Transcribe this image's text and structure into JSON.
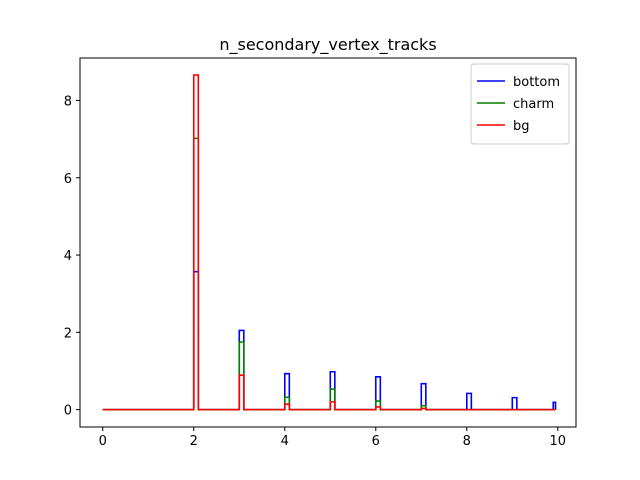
{
  "chart_data": {
    "type": "line",
    "subtype": "step-histogram",
    "title": "n_secondary_vertex_tracks",
    "xlabel": "",
    "ylabel": "",
    "xlim": [
      -0.5,
      10.4
    ],
    "ylim": [
      -0.45,
      9.1
    ],
    "xticks": [
      0,
      2,
      4,
      6,
      8,
      10
    ],
    "yticks": [
      0,
      2,
      4,
      6,
      8
    ],
    "grid": false,
    "legend_position": "upper right",
    "bin_edges": [
      2.0,
      2.1,
      3.0,
      3.1,
      4.0,
      4.1,
      5.0,
      5.1,
      6.0,
      6.1,
      7.0,
      7.1,
      8.0,
      8.1,
      9.0,
      9.1,
      9.9,
      9.95
    ],
    "x_range": [
      0.0,
      9.95
    ],
    "series": [
      {
        "name": "bottom",
        "color": "#0000ff",
        "bins": [
          {
            "x0": 2.0,
            "x1": 2.1,
            "y": 3.57
          },
          {
            "x0": 3.0,
            "x1": 3.1,
            "y": 2.05
          },
          {
            "x0": 4.0,
            "x1": 4.1,
            "y": 0.93
          },
          {
            "x0": 5.0,
            "x1": 5.1,
            "y": 0.98
          },
          {
            "x0": 6.0,
            "x1": 6.1,
            "y": 0.85
          },
          {
            "x0": 7.0,
            "x1": 7.1,
            "y": 0.67
          },
          {
            "x0": 8.0,
            "x1": 8.1,
            "y": 0.42
          },
          {
            "x0": 9.0,
            "x1": 9.1,
            "y": 0.31
          },
          {
            "x0": 9.9,
            "x1": 9.95,
            "y": 0.19
          }
        ]
      },
      {
        "name": "charm",
        "color": "#008000",
        "bins": [
          {
            "x0": 2.0,
            "x1": 2.1,
            "y": 7.02
          },
          {
            "x0": 3.0,
            "x1": 3.1,
            "y": 1.75
          },
          {
            "x0": 4.0,
            "x1": 4.1,
            "y": 0.32
          },
          {
            "x0": 5.0,
            "x1": 5.1,
            "y": 0.53
          },
          {
            "x0": 6.0,
            "x1": 6.1,
            "y": 0.22
          },
          {
            "x0": 7.0,
            "x1": 7.1,
            "y": 0.1
          },
          {
            "x0": 8.0,
            "x1": 8.1,
            "y": 0.0
          },
          {
            "x0": 9.0,
            "x1": 9.1,
            "y": 0.0
          },
          {
            "x0": 9.9,
            "x1": 9.95,
            "y": 0.0
          }
        ]
      },
      {
        "name": "bg",
        "color": "#ff0000",
        "bins": [
          {
            "x0": 2.0,
            "x1": 2.1,
            "y": 8.66
          },
          {
            "x0": 3.0,
            "x1": 3.1,
            "y": 0.89
          },
          {
            "x0": 4.0,
            "x1": 4.1,
            "y": 0.14
          },
          {
            "x0": 5.0,
            "x1": 5.1,
            "y": 0.2
          },
          {
            "x0": 6.0,
            "x1": 6.1,
            "y": 0.07
          },
          {
            "x0": 7.0,
            "x1": 7.1,
            "y": 0.03
          },
          {
            "x0": 8.0,
            "x1": 8.1,
            "y": 0.0
          },
          {
            "x0": 9.0,
            "x1": 9.1,
            "y": 0.0
          },
          {
            "x0": 9.9,
            "x1": 9.95,
            "y": 0.0
          }
        ]
      }
    ]
  }
}
